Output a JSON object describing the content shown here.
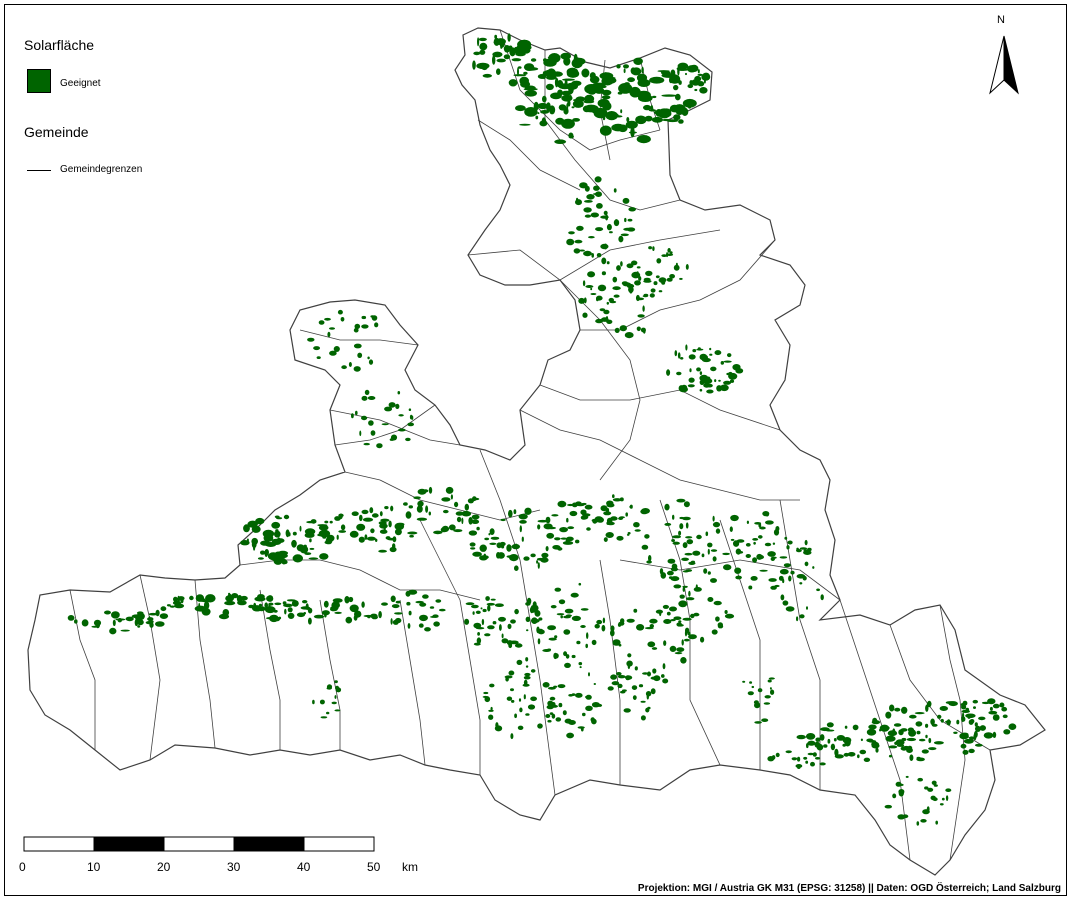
{
  "legend": {
    "section1_title": "Solarfläche",
    "item1_label": "Geeignet",
    "section2_title": "Gemeinde",
    "item2_label": "Gemeindegrenzen"
  },
  "north_arrow": {
    "label": "N"
  },
  "scale_bar": {
    "ticks": [
      "0",
      "10",
      "20",
      "30",
      "40",
      "50"
    ],
    "unit": "km"
  },
  "credit": "Projektion: MGI / Austria GK M31 (EPSG: 31258) || Daten: OGD Österreich; Land Salzburg",
  "colors": {
    "suitable_area": "#006400",
    "boundary": "#404040",
    "background": "#ffffff"
  }
}
